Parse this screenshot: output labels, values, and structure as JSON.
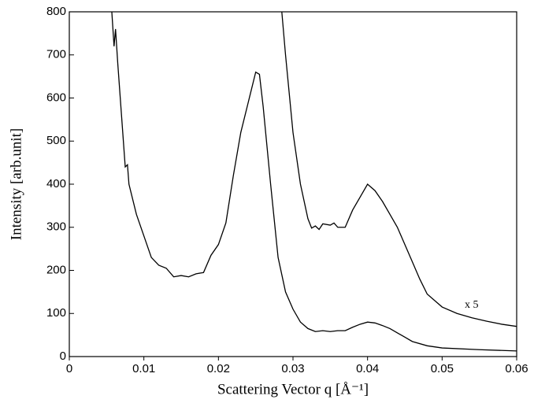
{
  "chart_data": {
    "type": "line",
    "xlabel": "Scattering Vector q  [Å⁻¹]",
    "ylabel": "Intensity [arb.unit]",
    "annotation": "x 5",
    "xlim": [
      0,
      0.06
    ],
    "xticks": [
      0,
      0.01,
      0.02,
      0.03,
      0.04,
      0.05,
      0.06
    ],
    "ylim": [
      0,
      800
    ],
    "yticks": [
      0,
      100,
      200,
      300,
      400,
      500,
      600,
      700,
      800
    ],
    "series": [
      {
        "color": "#000000",
        "x": [
          0.0057,
          0.006,
          0.0062,
          0.0065,
          0.007,
          0.0075,
          0.0078,
          0.008,
          0.009,
          0.01,
          0.011,
          0.012,
          0.013,
          0.014,
          0.015,
          0.016,
          0.017,
          0.018,
          0.019,
          0.02,
          0.021,
          0.022,
          0.023,
          0.024,
          0.025,
          0.0255,
          0.026,
          0.027,
          0.028,
          0.029,
          0.03,
          0.031,
          0.032,
          0.033,
          0.034,
          0.035,
          0.036,
          0.037,
          0.038,
          0.039,
          0.04,
          0.041,
          0.042,
          0.043,
          0.044,
          0.045,
          0.046,
          0.048,
          0.05,
          0.055,
          0.06
        ],
        "values": [
          800,
          720,
          760,
          680,
          560,
          440,
          445,
          400,
          330,
          280,
          230,
          212,
          205,
          185,
          188,
          185,
          192,
          195,
          235,
          260,
          310,
          420,
          520,
          590,
          660,
          655,
          580,
          400,
          230,
          150,
          110,
          80,
          65,
          58,
          60,
          58,
          60,
          60,
          68,
          75,
          80,
          78,
          72,
          65,
          55,
          45,
          35,
          25,
          20,
          16,
          13
        ]
      },
      {
        "color": "#000000",
        "x": [
          0.0285,
          0.029,
          0.03,
          0.031,
          0.032,
          0.0325,
          0.033,
          0.0335,
          0.034,
          0.035,
          0.0355,
          0.036,
          0.037,
          0.038,
          0.039,
          0.04,
          0.041,
          0.042,
          0.043,
          0.044,
          0.045,
          0.046,
          0.047,
          0.048,
          0.05,
          0.052,
          0.054,
          0.056,
          0.058,
          0.06
        ],
        "values": [
          800,
          700,
          520,
          400,
          320,
          298,
          303,
          295,
          308,
          305,
          310,
          300,
          300,
          340,
          370,
          400,
          385,
          360,
          330,
          300,
          260,
          220,
          180,
          145,
          115,
          100,
          90,
          82,
          75,
          70
        ]
      }
    ]
  }
}
